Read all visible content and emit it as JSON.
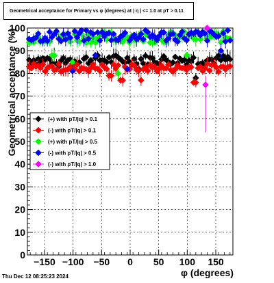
{
  "chart_data": {
    "type": "scatter",
    "title": "Geometrical acceptance for Primary vs φ (degrees) at | η | <= 1.0 at pT > 0.11",
    "xlabel": "φ (degrees)",
    "ylabel": "Geometrical acceptance (%)",
    "xlim": [
      -180,
      180
    ],
    "ylim": [
      0,
      100
    ],
    "x_ticks": [
      -150,
      -100,
      -50,
      0,
      50,
      100,
      150
    ],
    "x_tick_labels": [
      "−150",
      "−100",
      "−50",
      "0",
      "50",
      "100",
      "150"
    ],
    "y_ticks": [
      0,
      10,
      20,
      30,
      40,
      50,
      60,
      70,
      80,
      90,
      100
    ],
    "y_tick_labels": [
      "0",
      "10",
      "20",
      "30",
      "40",
      "50",
      "60",
      "70",
      "80",
      "90",
      "100"
    ],
    "grid": true,
    "legend_position": "left-middle",
    "series": [
      {
        "name": "(+) with pT/|q| > 0.1",
        "color": "#000000",
        "marker": "diamond",
        "base": 86,
        "spread": 2.2,
        "dips": [
          [
            -85,
            82
          ],
          [
            15,
            82
          ],
          [
            115,
            78
          ],
          [
            -125,
            83
          ]
        ]
      },
      {
        "name": "(-) with pT/|q| > 0.1",
        "color": "#ff0000",
        "marker": "diamond",
        "base": 82.5,
        "spread": 1.8,
        "dips": [
          [
            -15,
            77
          ],
          [
            18,
            77
          ],
          [
            113,
            76
          ],
          [
            -35,
            79
          ]
        ]
      },
      {
        "name": "(+) with pT/|q| > 0.5",
        "color": "#00ff00",
        "marker": "diamond",
        "base": 96,
        "spread": 2.5,
        "dips": [
          [
            -20,
            80
          ],
          [
            -135,
            88
          ],
          [
            -100,
            85
          ],
          [
            100,
            88
          ]
        ]
      },
      {
        "name": "(-) with pT/|q| > 0.5",
        "color": "#0000ff",
        "marker": "diamond",
        "base": 96.5,
        "spread": 2.6,
        "dips": [
          [
            -100,
            81
          ],
          [
            -5,
            82
          ],
          [
            -60,
            88
          ],
          [
            160,
            90
          ]
        ]
      },
      {
        "name": "(-) with pT/|q| > 1.0",
        "color": "#ff00ff",
        "marker": "diamond",
        "points": [
          [
            132,
            75
          ],
          [
            135,
            100
          ]
        ]
      }
    ]
  },
  "footer": {
    "timestamp": "Thu Dec 12 08:25:23 2024"
  }
}
